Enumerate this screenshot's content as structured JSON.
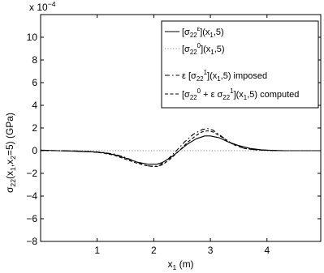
{
  "chart_data": {
    "type": "line",
    "title": "",
    "xlabel": "x",
    "xlabel_sub": "1",
    "xlabel_unit": " (m)",
    "ylabel": "σ22(x1,x2=5) (GPa)",
    "ylabel_parts": [
      "σ",
      "22",
      "(x",
      "1",
      ",x",
      "2",
      "=5) (GPa)"
    ],
    "exponent_label": [
      "x 10",
      "−4"
    ],
    "xlim": [
      0,
      4.95
    ],
    "ylim": [
      -8,
      12
    ],
    "xticks": [
      1,
      2,
      3,
      4
    ],
    "yticks": [
      -8,
      -6,
      -4,
      -2,
      0,
      2,
      4,
      6,
      8,
      10
    ],
    "grid": false,
    "legend_position": "top-right",
    "series": [
      {
        "name": "[σ22ε](x1,5)",
        "legend_parts": [
          [
            "[σ",
            ""
          ],
          [
            "22",
            "sub"
          ],
          [
            "ε",
            "sup"
          ],
          [
            "](x",
            ""
          ],
          [
            "1",
            "sub"
          ],
          [
            ",5)",
            ""
          ]
        ],
        "style": "solid",
        "color": "#000000",
        "x": [
          0,
          0.3,
          0.6,
          0.9,
          1.1,
          1.3,
          1.5,
          1.7,
          1.9,
          2.05,
          2.15,
          2.3,
          2.45,
          2.6,
          2.75,
          2.9,
          3.0,
          3.15,
          3.3,
          3.5,
          3.7,
          3.9,
          4.1,
          4.3,
          4.6,
          4.95
        ],
        "y": [
          0.05,
          0.0,
          -0.05,
          -0.1,
          -0.18,
          -0.35,
          -0.65,
          -1.0,
          -1.2,
          -1.2,
          -1.05,
          -0.6,
          0.0,
          0.6,
          1.05,
          1.3,
          1.3,
          1.15,
          0.8,
          0.45,
          0.2,
          0.08,
          0.02,
          0.0,
          0.0,
          0.0
        ]
      },
      {
        "name": "[σ220](x1,5)",
        "legend_parts": [
          [
            "[σ",
            ""
          ],
          [
            "22",
            "sub"
          ],
          [
            "0",
            "sup"
          ],
          [
            "](x",
            ""
          ],
          [
            "1",
            "sub"
          ],
          [
            ",5)",
            ""
          ]
        ],
        "style": "dotted",
        "color": "#8a8a8a",
        "x": [
          0,
          4.95
        ],
        "y": [
          0,
          0
        ]
      },
      {
        "name": "ε [σ221](x1,5) imposed",
        "legend_parts": [
          [
            "ε [σ",
            ""
          ],
          [
            "22",
            "sub"
          ],
          [
            "1",
            "sup"
          ],
          [
            "](x",
            ""
          ],
          [
            "1",
            "sub"
          ],
          [
            ",5) imposed",
            ""
          ]
        ],
        "style": "dashdot",
        "color": "#000000",
        "x": [
          0,
          0.3,
          0.6,
          0.9,
          1.1,
          1.3,
          1.5,
          1.7,
          1.85,
          2.0,
          2.1,
          2.25,
          2.4,
          2.55,
          2.7,
          2.85,
          2.95,
          3.05,
          3.2,
          3.4,
          3.6,
          3.8,
          4.0,
          4.3,
          4.6,
          4.95
        ],
        "y": [
          0.02,
          0.0,
          -0.02,
          -0.08,
          -0.15,
          -0.3,
          -0.6,
          -1.0,
          -1.3,
          -1.4,
          -1.3,
          -0.75,
          0.0,
          0.8,
          1.45,
          1.85,
          1.95,
          1.8,
          1.25,
          0.55,
          0.2,
          0.08,
          0.03,
          0.0,
          0.0,
          0.0
        ]
      },
      {
        "name": "[σ220 + ε σ221](x1,5) computed",
        "legend_parts": [
          [
            "[σ",
            ""
          ],
          [
            "22",
            "sub"
          ],
          [
            "0",
            "sup"
          ],
          [
            " + ε σ",
            ""
          ],
          [
            "22",
            "sub"
          ],
          [
            "1",
            "sup"
          ],
          [
            "](x",
            ""
          ],
          [
            "1",
            "sub"
          ],
          [
            ",5) computed",
            ""
          ]
        ],
        "style": "dashed",
        "color": "#000000",
        "x": [
          0,
          0.3,
          0.6,
          0.9,
          1.1,
          1.3,
          1.5,
          1.7,
          1.9,
          2.05,
          2.15,
          2.3,
          2.45,
          2.6,
          2.75,
          2.85,
          2.95,
          3.05,
          3.2,
          3.4,
          3.6,
          3.8,
          4.0,
          4.3,
          4.6,
          4.95
        ],
        "y": [
          0.0,
          0.0,
          -0.03,
          -0.1,
          -0.2,
          -0.4,
          -0.75,
          -1.1,
          -1.35,
          -1.4,
          -1.25,
          -0.7,
          0.0,
          0.75,
          1.35,
          1.65,
          1.75,
          1.65,
          1.2,
          0.55,
          0.2,
          0.08,
          0.03,
          0.0,
          0.0,
          0.0
        ]
      }
    ]
  }
}
